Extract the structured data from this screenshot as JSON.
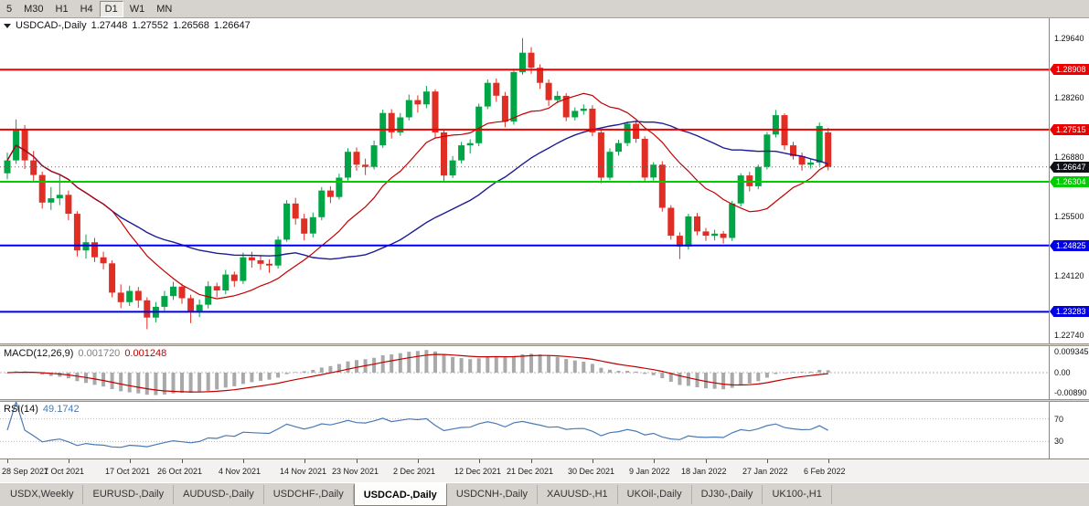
{
  "toolbar": {
    "timeframes": [
      {
        "label": "5",
        "active": false
      },
      {
        "label": "M30",
        "active": false
      },
      {
        "label": "H1",
        "active": false
      },
      {
        "label": "H4",
        "active": false
      },
      {
        "label": "D1",
        "active": true
      },
      {
        "label": "W1",
        "active": false
      },
      {
        "label": "MN",
        "active": false
      }
    ]
  },
  "chart": {
    "title": {
      "symbol": "USDCAD-,Daily",
      "open": "1.27448",
      "high": "1.27552",
      "low": "1.26568",
      "close": "1.26647"
    }
  },
  "chart_data": {
    "type": "candlestick",
    "symbol": "USDCAD",
    "period": "Daily",
    "colors": {
      "up": "#00a645",
      "down": "#e02e24"
    },
    "y_axis": {
      "price_top": 1.301,
      "price_bottom": 1.2255,
      "labels": [
        "1.29640",
        "1.28260",
        "1.26880",
        "1.25500",
        "1.24120",
        "1.22740"
      ]
    },
    "levels": [
      {
        "price": 1.28908,
        "label": "1.28908",
        "color": "#ee0000"
      },
      {
        "price": 1.27515,
        "label": "1.27515",
        "color": "#ee0000"
      },
      {
        "price": 1.26304,
        "label": "1.26304",
        "color": "#00cc00"
      },
      {
        "price": 1.24825,
        "label": "1.24825",
        "color": "#0000e6"
      },
      {
        "price": 1.23283,
        "label": "1.23283",
        "color": "#0000e6"
      }
    ],
    "current_price": {
      "value": 1.26647,
      "label": "1.26647",
      "color": "#101018"
    },
    "overlays": [
      {
        "name": "ma-fast",
        "period": 13,
        "color": "#c00000"
      },
      {
        "name": "ma-slow",
        "period": 34,
        "color": "#1c1c94"
      }
    ],
    "x_ticks": [
      {
        "label": "28 Sep 2021",
        "i": 0
      },
      {
        "label": "7 Oct 2021",
        "i": 7
      },
      {
        "label": "17 Oct 2021",
        "i": 14
      },
      {
        "label": "26 Oct 2021",
        "i": 20
      },
      {
        "label": "4 Nov 2021",
        "i": 27
      },
      {
        "label": "14 Nov 2021",
        "i": 34
      },
      {
        "label": "23 Nov 2021",
        "i": 40
      },
      {
        "label": "2 Dec 2021",
        "i": 47
      },
      {
        "label": "12 Dec 2021",
        "i": 54
      },
      {
        "label": "21 Dec 2021",
        "i": 60
      },
      {
        "label": "30 Dec 2021",
        "i": 67
      },
      {
        "label": "9 Jan 2022",
        "i": 74
      },
      {
        "label": "18 Jan 2022",
        "i": 80
      },
      {
        "label": "27 Jan 2022",
        "i": 87
      },
      {
        "label": "6 Feb 2022",
        "i": 94
      }
    ],
    "candles": [
      [
        1.265,
        1.2698,
        1.2636,
        1.268
      ],
      [
        1.268,
        1.2775,
        1.2672,
        1.275
      ],
      [
        1.275,
        1.2762,
        1.266,
        1.268
      ],
      [
        1.268,
        1.2702,
        1.263,
        1.2646
      ],
      [
        1.2646,
        1.2654,
        1.2568,
        1.2582
      ],
      [
        1.2582,
        1.2618,
        1.2565,
        1.2592
      ],
      [
        1.2592,
        1.2648,
        1.2576,
        1.26
      ],
      [
        1.26,
        1.261,
        1.2541,
        1.2556
      ],
      [
        1.2556,
        1.2562,
        1.2457,
        1.2471
      ],
      [
        1.2471,
        1.2508,
        1.2452,
        1.249
      ],
      [
        1.249,
        1.25,
        1.2444,
        1.2455
      ],
      [
        1.2455,
        1.2468,
        1.2427,
        1.2441
      ],
      [
        1.2441,
        1.2448,
        1.2362,
        1.2373
      ],
      [
        1.2373,
        1.2392,
        1.2337,
        1.2351
      ],
      [
        1.2351,
        1.2389,
        1.2342,
        1.2377
      ],
      [
        1.2377,
        1.2386,
        1.2338,
        1.2355
      ],
      [
        1.2355,
        1.2362,
        1.2288,
        1.2315
      ],
      [
        1.2315,
        1.2351,
        1.2304,
        1.234
      ],
      [
        1.234,
        1.2377,
        1.2331,
        1.2365
      ],
      [
        1.2365,
        1.2398,
        1.2356,
        1.2387
      ],
      [
        1.2387,
        1.2394,
        1.2347,
        1.236
      ],
      [
        1.236,
        1.2368,
        1.2302,
        1.233
      ],
      [
        1.233,
        1.2357,
        1.2316,
        1.2345
      ],
      [
        1.2345,
        1.2399,
        1.2336,
        1.2388
      ],
      [
        1.2388,
        1.2396,
        1.2362,
        1.2378
      ],
      [
        1.2378,
        1.2426,
        1.2369,
        1.2415
      ],
      [
        1.2415,
        1.2422,
        1.2386,
        1.24
      ],
      [
        1.24,
        1.2466,
        1.2393,
        1.2455
      ],
      [
        1.2455,
        1.2468,
        1.2431,
        1.2448
      ],
      [
        1.2448,
        1.246,
        1.2426,
        1.244
      ],
      [
        1.244,
        1.245,
        1.2419,
        1.2436
      ],
      [
        1.2436,
        1.2504,
        1.2429,
        1.2496
      ],
      [
        1.2496,
        1.2588,
        1.2491,
        1.258
      ],
      [
        1.258,
        1.2593,
        1.2531,
        1.2545
      ],
      [
        1.2545,
        1.2556,
        1.2494,
        1.251
      ],
      [
        1.251,
        1.2559,
        1.2501,
        1.2548
      ],
      [
        1.2548,
        1.2618,
        1.2541,
        1.261
      ],
      [
        1.261,
        1.262,
        1.2581,
        1.2595
      ],
      [
        1.2595,
        1.2649,
        1.2589,
        1.264
      ],
      [
        1.264,
        1.2708,
        1.2633,
        1.27
      ],
      [
        1.27,
        1.271,
        1.2656,
        1.267
      ],
      [
        1.267,
        1.2684,
        1.2646,
        1.2665
      ],
      [
        1.2665,
        1.2726,
        1.2659,
        1.2715
      ],
      [
        1.2715,
        1.2798,
        1.2709,
        1.279
      ],
      [
        1.279,
        1.2799,
        1.2731,
        1.2745
      ],
      [
        1.2745,
        1.279,
        1.2737,
        1.278
      ],
      [
        1.278,
        1.2833,
        1.2773,
        1.282
      ],
      [
        1.282,
        1.2831,
        1.2791,
        1.281
      ],
      [
        1.281,
        1.2853,
        1.2801,
        1.284
      ],
      [
        1.284,
        1.2845,
        1.2732,
        1.2745
      ],
      [
        1.2745,
        1.2753,
        1.2632,
        1.2645
      ],
      [
        1.2645,
        1.269,
        1.2639,
        1.268
      ],
      [
        1.268,
        1.2723,
        1.2673,
        1.2715
      ],
      [
        1.2715,
        1.2729,
        1.2696,
        1.272
      ],
      [
        1.272,
        1.2812,
        1.2713,
        1.2805
      ],
      [
        1.2805,
        1.2868,
        1.2799,
        1.286
      ],
      [
        1.286,
        1.287,
        1.2816,
        1.283
      ],
      [
        1.283,
        1.2839,
        1.2757,
        1.277
      ],
      [
        1.277,
        1.2893,
        1.2763,
        1.2885
      ],
      [
        1.2885,
        1.2964,
        1.2879,
        1.293
      ],
      [
        1.293,
        1.2943,
        1.2881,
        1.2895
      ],
      [
        1.2895,
        1.2903,
        1.2846,
        1.286
      ],
      [
        1.286,
        1.2868,
        1.2806,
        1.282
      ],
      [
        1.282,
        1.2841,
        1.2813,
        1.283
      ],
      [
        1.283,
        1.2836,
        1.2771,
        1.278
      ],
      [
        1.278,
        1.2803,
        1.2773,
        1.2795
      ],
      [
        1.2795,
        1.281,
        1.2786,
        1.28
      ],
      [
        1.28,
        1.2808,
        1.2736,
        1.2745
      ],
      [
        1.2745,
        1.275,
        1.2627,
        1.264
      ],
      [
        1.264,
        1.2708,
        1.2634,
        1.27
      ],
      [
        1.27,
        1.2728,
        1.2691,
        1.272
      ],
      [
        1.272,
        1.277,
        1.2713,
        1.2765
      ],
      [
        1.2765,
        1.2773,
        1.2721,
        1.273
      ],
      [
        1.273,
        1.2736,
        1.2629,
        1.264
      ],
      [
        1.264,
        1.2676,
        1.2633,
        1.267
      ],
      [
        1.267,
        1.2678,
        1.2561,
        1.257
      ],
      [
        1.257,
        1.2576,
        1.2496,
        1.2505
      ],
      [
        1.2505,
        1.2513,
        1.2451,
        1.248
      ],
      [
        1.248,
        1.2556,
        1.2473,
        1.255
      ],
      [
        1.255,
        1.2558,
        1.2506,
        1.2515
      ],
      [
        1.2515,
        1.2523,
        1.2493,
        1.2505
      ],
      [
        1.2505,
        1.2519,
        1.2494,
        1.251
      ],
      [
        1.251,
        1.2516,
        1.2487,
        1.25
      ],
      [
        1.25,
        1.2586,
        1.2493,
        1.258
      ],
      [
        1.258,
        1.265,
        1.2573,
        1.2645
      ],
      [
        1.2645,
        1.2653,
        1.2608,
        1.262
      ],
      [
        1.262,
        1.267,
        1.2613,
        1.2665
      ],
      [
        1.2665,
        1.2746,
        1.2659,
        1.274
      ],
      [
        1.274,
        1.2797,
        1.2733,
        1.2785
      ],
      [
        1.2785,
        1.2789,
        1.2704,
        1.2715
      ],
      [
        1.2715,
        1.2723,
        1.2682,
        1.269
      ],
      [
        1.269,
        1.2698,
        1.2656,
        1.267
      ],
      [
        1.267,
        1.2684,
        1.2661,
        1.2675
      ],
      [
        1.2675,
        1.2768,
        1.2667,
        1.276
      ],
      [
        1.27448,
        1.27552,
        1.26568,
        1.26647
      ]
    ]
  },
  "macd": {
    "title": "MACD(12,26,9)",
    "value": "0.001720",
    "signal": "0.001248",
    "fast": 12,
    "slow": 26,
    "smooth": 9,
    "axis_labels": [
      "0.009345",
      "0.00",
      "-0.00890"
    ],
    "colors": {
      "hist": "#a9a9a9",
      "signal": "#c00000"
    }
  },
  "rsi": {
    "title": "RSI(14)",
    "value": "49.1742",
    "period": 14,
    "levels": [
      70,
      30
    ],
    "color": "#4a7ab5"
  },
  "tabs": [
    {
      "label": "USDX,Weekly",
      "active": false
    },
    {
      "label": "EURUSD-,Daily",
      "active": false
    },
    {
      "label": "AUDUSD-,Daily",
      "active": false
    },
    {
      "label": "USDCHF-,Daily",
      "active": false
    },
    {
      "label": "USDCAD-,Daily",
      "active": true
    },
    {
      "label": "USDCNH-,Daily",
      "active": false
    },
    {
      "label": "XAUUSD-,H1",
      "active": false
    },
    {
      "label": "UKOil-,Daily",
      "active": false
    },
    {
      "label": "DJ30-,Daily",
      "active": false
    },
    {
      "label": "UK100-,H1",
      "active": false
    }
  ]
}
